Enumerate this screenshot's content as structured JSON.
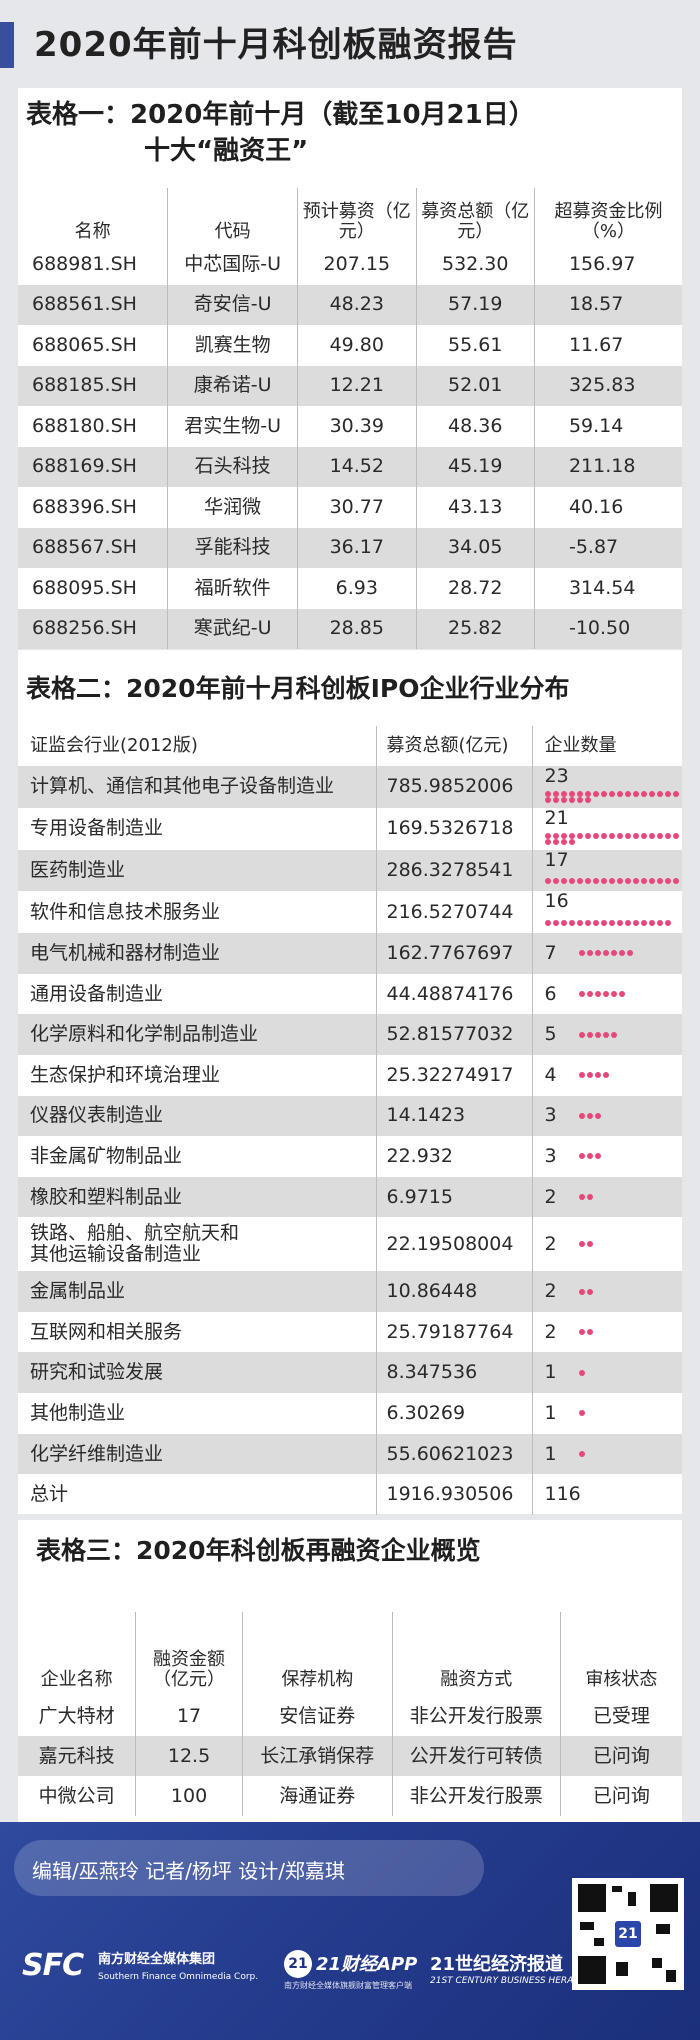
{
  "page_title": "2020年前十月科创板融资报告",
  "table1": {
    "title_line1": "表格一：2020年前十月（截至10月21日）",
    "title_line2": "十大“融资王”",
    "headers": [
      "名称",
      "代码",
      "预计募资（亿元）",
      "募资总额（亿元）",
      "超募资金比例（%）"
    ],
    "rows": [
      [
        "688981.SH",
        "中芯国际-U",
        "207.15",
        "532.30",
        "156.97"
      ],
      [
        "688561.SH",
        "奇安信-U",
        "48.23",
        "57.19",
        "18.57"
      ],
      [
        "688065.SH",
        "凯赛生物",
        "49.80",
        "55.61",
        "11.67"
      ],
      [
        "688185.SH",
        "康希诺-U",
        "12.21",
        "52.01",
        "325.83"
      ],
      [
        "688180.SH",
        "君实生物-U",
        "30.39",
        "48.36",
        "59.14"
      ],
      [
        "688169.SH",
        "石头科技",
        "14.52",
        "45.19",
        "211.18"
      ],
      [
        "688396.SH",
        "华润微",
        "30.77",
        "43.13",
        "40.16"
      ],
      [
        "688567.SH",
        "孚能科技",
        "36.17",
        "34.05",
        "-5.87"
      ],
      [
        "688095.SH",
        "福昕软件",
        "6.93",
        "28.72",
        "314.54"
      ],
      [
        "688256.SH",
        "寒武纪-U",
        "28.85",
        "25.82",
        "-10.50"
      ]
    ]
  },
  "table2": {
    "title": "表格二：2020年前十月科创板IPO企业行业分布",
    "headers": [
      "证监会行业(2012版)",
      "募资总额(亿元)",
      "企业数量"
    ],
    "rows": [
      {
        "industry": "计算机、通信和其他电子设备制造业",
        "amount": "785.9852006",
        "count": 23
      },
      {
        "industry": "专用设备制造业",
        "amount": "169.5326718",
        "count": 21
      },
      {
        "industry": "医药制造业",
        "amount": "286.3278541",
        "count": 17
      },
      {
        "industry": "软件和信息技术服务业",
        "amount": "216.5270744",
        "count": 16
      },
      {
        "industry": "电气机械和器材制造业",
        "amount": "162.7767697",
        "count": 7
      },
      {
        "industry": "通用设备制造业",
        "amount": "44.48874176",
        "count": 6
      },
      {
        "industry": "化学原料和化学制品制造业",
        "amount": "52.81577032",
        "count": 5
      },
      {
        "industry": "生态保护和环境治理业",
        "amount": "25.32274917",
        "count": 4
      },
      {
        "industry": "仪器仪表制造业",
        "amount": "14.1423",
        "count": 3
      },
      {
        "industry": "非金属矿物制品业",
        "amount": "22.932",
        "count": 3
      },
      {
        "industry": "橡胶和塑料制品业",
        "amount": "6.9715",
        "count": 2
      },
      {
        "industry": "铁路、船舶、航空航天和\n其他运输设备制造业",
        "amount": "22.19508004",
        "count": 2
      },
      {
        "industry": "金属制品业",
        "amount": "10.86448",
        "count": 2
      },
      {
        "industry": "互联网和相关服务",
        "amount": "25.79187764",
        "count": 2
      },
      {
        "industry": "研究和试验发展",
        "amount": "8.347536",
        "count": 1
      },
      {
        "industry": "其他制造业",
        "amount": "6.30269",
        "count": 1
      },
      {
        "industry": "化学纤维制造业",
        "amount": "55.60621023",
        "count": 1
      }
    ],
    "total": {
      "label": "总计",
      "amount": "1916.930506",
      "count": "116"
    },
    "dot_color": "#e8477a"
  },
  "table3": {
    "title": "表格三：2020年科创板再融资企业概览",
    "headers": [
      "企业名称",
      "融资金额（亿元）",
      "保荐机构",
      "融资方式",
      "审核状态"
    ],
    "rows": [
      [
        "广大特材",
        "17",
        "安信证券",
        "非公开发行股票",
        "已受理"
      ],
      [
        "嘉元科技",
        "12.5",
        "长江承销保荐",
        "公开发行可转债",
        "已问询"
      ],
      [
        "中微公司",
        "100",
        "海通证券",
        "非公开发行股票",
        "已问询"
      ]
    ]
  },
  "footer": {
    "credits": "编辑/巫燕玲  记者/杨坪  设计/郑嘉琪",
    "sfc_logo": "SFC",
    "sfc_name": "南方财经全媒体集团",
    "sfc_name_en": "Southern Finance Omnimedia Corp.",
    "app_badge": "21",
    "app_name": "21财经APP",
    "app_sub": "南方财经全媒体旗舰财富管理客户端",
    "herald_name": "21世纪经济报道",
    "herald_en": "21ST CENTURY BUSINESS HERALD",
    "qr_badge": "21"
  },
  "colors": {
    "header_bar": "#3a4f9c",
    "footer_bg": "#23398a",
    "stripe": "#dcdcdc"
  }
}
